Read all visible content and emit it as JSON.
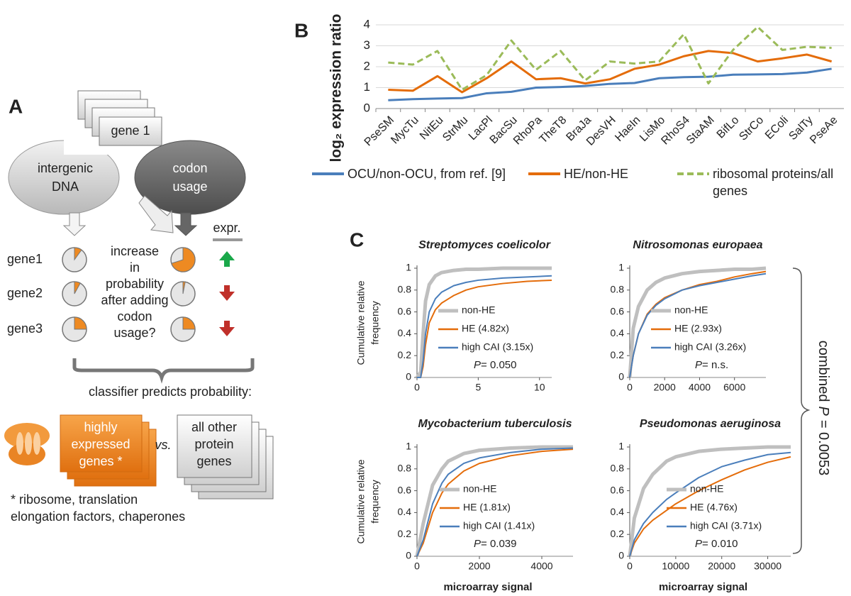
{
  "panel_labels": [
    "A",
    "B",
    "C"
  ],
  "diagram": {
    "stack_label": "gene 1",
    "left_source": [
      "intergenic",
      "DNA"
    ],
    "right_source": [
      "codon",
      "usage"
    ],
    "expr_header": "expr.",
    "question": [
      "increase",
      "in",
      "probability",
      "after adding",
      "codon",
      "usage?"
    ],
    "genes": [
      {
        "name": "gene1",
        "before": 0.1,
        "after": 0.7
      },
      {
        "name": "gene2",
        "before": 0.08,
        "after": 0.03
      },
      {
        "name": "gene3",
        "before": 0.25,
        "after": 0.25
      }
    ],
    "classifier_caption": "classifier predicts probability:",
    "positive_box": [
      "highly",
      "expressed",
      "genes *"
    ],
    "versus": "vs.",
    "negative_box": [
      "all other",
      "protein",
      "genes"
    ],
    "footnote": [
      "* ribosome, translation",
      "elongation factors, chaperones"
    ]
  },
  "chart_data": [
    {
      "type": "line",
      "ylabel": "log₂ expression ratio",
      "categories": [
        "PseSM",
        "MycTu",
        "NitEu",
        "StrMu",
        "LacPl",
        "BacSu",
        "RhoPa",
        "TheT8",
        "BraJa",
        "DesVH",
        "HaeIn",
        "LisMo",
        "RhoS4",
        "StaAM",
        "BifLo",
        "StrCo",
        "EColi",
        "SalTy",
        "PseAe"
      ],
      "series": [
        {
          "name": "OCU/non-OCU, from ref. [9]",
          "color": "#4a7ebb",
          "values": [
            0.4,
            0.45,
            0.48,
            0.5,
            0.73,
            0.8,
            1.0,
            1.03,
            1.08,
            1.18,
            1.22,
            1.45,
            1.5,
            1.52,
            1.62,
            1.63,
            1.65,
            1.72,
            1.9
          ]
        },
        {
          "name": "HE/non-HE",
          "color": "#e46c0a",
          "values": [
            0.9,
            0.85,
            1.55,
            0.78,
            1.45,
            2.25,
            1.4,
            1.45,
            1.2,
            1.4,
            1.9,
            2.1,
            2.5,
            2.75,
            2.65,
            2.25,
            2.4,
            2.58,
            2.25
          ]
        },
        {
          "name": "ribosomal proteins/all genes",
          "color": "#9bbb59",
          "style": "dashed",
          "values": [
            2.2,
            2.1,
            2.75,
            0.9,
            1.6,
            3.25,
            1.85,
            2.75,
            1.35,
            2.25,
            2.15,
            2.25,
            3.55,
            1.2,
            2.8,
            3.9,
            2.8,
            2.95,
            2.9
          ]
        }
      ],
      "ylim": [
        0,
        4
      ],
      "yticks": [
        0,
        1,
        2,
        3,
        4
      ],
      "grid": true,
      "legend": "bottom"
    },
    {
      "type": "line",
      "title": "Streptomyces coelicolor",
      "ylabel": [
        "Cumulative relative",
        "frequency"
      ],
      "x": [
        0,
        0.3,
        0.5,
        0.7,
        1,
        1.5,
        2,
        3,
        4,
        5,
        7,
        9,
        11
      ],
      "series": [
        {
          "name": "non-HE",
          "color": "#bfbfbf",
          "values": [
            0,
            0.05,
            0.4,
            0.7,
            0.85,
            0.93,
            0.96,
            0.98,
            0.99,
            0.99,
            1,
            1,
            1
          ]
        },
        {
          "name": "HE (4.82x)",
          "color": "#e46c0a",
          "values": [
            0,
            0,
            0.1,
            0.3,
            0.5,
            0.62,
            0.68,
            0.75,
            0.8,
            0.83,
            0.86,
            0.88,
            0.89
          ]
        },
        {
          "name": "high CAI (3.15x)",
          "color": "#4a7ebb",
          "values": [
            0,
            0,
            0.15,
            0.4,
            0.6,
            0.72,
            0.78,
            0.84,
            0.87,
            0.89,
            0.91,
            0.92,
            0.93
          ]
        }
      ],
      "p_annotation": {
        "symbol": "P",
        "text": "= 0.050"
      },
      "xlim": [
        0,
        11
      ],
      "xticks": [
        0,
        5,
        10
      ],
      "ylim": [
        0,
        1
      ],
      "yticks": [
        0,
        0.2,
        0.4,
        0.6,
        0.8,
        1
      ],
      "grid": false,
      "legend": "inside"
    },
    {
      "type": "line",
      "title": "Nitrosomonas europaea",
      "x": [
        0,
        200,
        500,
        1000,
        1500,
        2000,
        3000,
        4000,
        5000,
        6000,
        7000,
        7800
      ],
      "series": [
        {
          "name": "non-HE",
          "color": "#bfbfbf",
          "values": [
            0,
            0.45,
            0.65,
            0.8,
            0.87,
            0.91,
            0.95,
            0.97,
            0.98,
            0.99,
            0.99,
            1
          ]
        },
        {
          "name": "HE (2.93x)",
          "color": "#e46c0a",
          "values": [
            0,
            0.2,
            0.4,
            0.58,
            0.67,
            0.73,
            0.8,
            0.85,
            0.88,
            0.92,
            0.95,
            0.97
          ]
        },
        {
          "name": "high CAI (3.26x)",
          "color": "#4a7ebb",
          "values": [
            0,
            0.2,
            0.4,
            0.57,
            0.66,
            0.72,
            0.8,
            0.84,
            0.87,
            0.9,
            0.93,
            0.95
          ]
        }
      ],
      "p_annotation": {
        "symbol": "P",
        "text": "= n.s."
      },
      "xlim": [
        0,
        7800
      ],
      "xticks": [
        0,
        2000,
        4000,
        6000
      ],
      "ylim": [
        0,
        1
      ],
      "yticks": [
        0,
        0.2,
        0.4,
        0.6,
        0.8,
        1
      ],
      "grid": false,
      "legend": "inside"
    },
    {
      "type": "line",
      "title": "Mycobacterium tuberculosis",
      "ylabel": [
        "Cumulative relative",
        "frequency"
      ],
      "xlabel": "microarray signal",
      "x": [
        0,
        200,
        500,
        800,
        1000,
        1500,
        2000,
        3000,
        4000,
        5000
      ],
      "series": [
        {
          "name": "non-HE",
          "color": "#bfbfbf",
          "values": [
            0,
            0.3,
            0.65,
            0.8,
            0.87,
            0.94,
            0.97,
            0.99,
            1,
            1
          ]
        },
        {
          "name": "HE (1.81x)",
          "color": "#e46c0a",
          "values": [
            0,
            0.12,
            0.4,
            0.58,
            0.66,
            0.78,
            0.85,
            0.92,
            0.96,
            0.98
          ]
        },
        {
          "name": "high CAI (1.41x)",
          "color": "#4a7ebb",
          "values": [
            0,
            0.15,
            0.48,
            0.67,
            0.75,
            0.85,
            0.9,
            0.95,
            0.98,
            0.99
          ]
        }
      ],
      "p_annotation": {
        "symbol": "P",
        "text": "= 0.039"
      },
      "xlim": [
        0,
        5000
      ],
      "xticks": [
        0,
        2000,
        4000
      ],
      "ylim": [
        0,
        1
      ],
      "yticks": [
        0,
        0.2,
        0.4,
        0.6,
        0.8,
        1
      ],
      "grid": false,
      "legend": "inside"
    },
    {
      "type": "line",
      "title": "Pseudomonas aeruginosa",
      "xlabel": "microarray signal",
      "x": [
        0,
        1000,
        3000,
        5000,
        8000,
        10000,
        15000,
        20000,
        25000,
        30000,
        35000
      ],
      "series": [
        {
          "name": "non-HE",
          "color": "#bfbfbf",
          "values": [
            0,
            0.35,
            0.62,
            0.75,
            0.87,
            0.91,
            0.96,
            0.98,
            0.99,
            1,
            1
          ]
        },
        {
          "name": "HE (4.76x)",
          "color": "#e46c0a",
          "values": [
            0,
            0.12,
            0.25,
            0.33,
            0.42,
            0.48,
            0.6,
            0.7,
            0.79,
            0.86,
            0.91
          ]
        },
        {
          "name": "high CAI (3.71x)",
          "color": "#4a7ebb",
          "values": [
            0,
            0.15,
            0.3,
            0.4,
            0.52,
            0.58,
            0.72,
            0.82,
            0.88,
            0.93,
            0.95
          ]
        }
      ],
      "p_annotation": {
        "symbol": "P",
        "text": "= 0.010"
      },
      "xlim": [
        0,
        35000
      ],
      "xticks": [
        0,
        10000,
        20000,
        30000
      ],
      "ylim": [
        0,
        1
      ],
      "yticks": [
        0,
        0.2,
        0.4,
        0.6,
        0.8,
        1
      ],
      "grid": false,
      "legend": "inside"
    }
  ],
  "combined_label": {
    "text": "combined",
    "symbol": "P",
    "value": "= 0.0053"
  }
}
